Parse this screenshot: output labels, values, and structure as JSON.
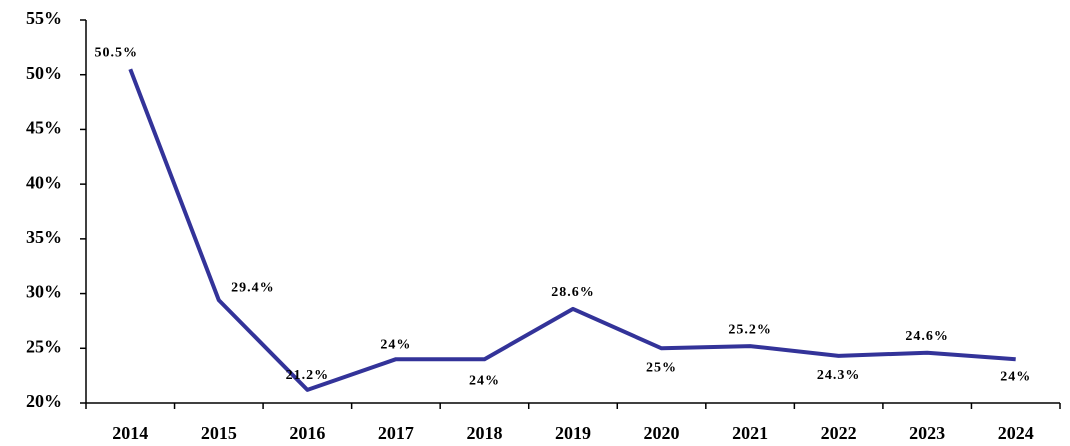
{
  "chart_data": {
    "type": "line",
    "categories": [
      "2014",
      "2015",
      "2016",
      "2017",
      "2018",
      "2019",
      "2020",
      "2021",
      "2022",
      "2023",
      "2024"
    ],
    "series": [
      {
        "color": "#333399",
        "values": [
          50.5,
          29.4,
          21.2,
          24,
          24,
          28.6,
          25,
          25.2,
          24.3,
          24.6,
          24
        ],
        "value_labels": [
          "50.5%",
          "29.4%",
          "21.2%",
          "24%",
          "24%",
          "28.6%",
          "25%",
          "25.2%",
          "24.3%",
          "24.6%",
          "24%"
        ]
      }
    ],
    "ylim": [
      20,
      55
    ],
    "yticks": [
      {
        "value": 20,
        "label": "20%"
      },
      {
        "value": 25,
        "label": "25%"
      },
      {
        "value": 30,
        "label": "30%"
      },
      {
        "value": 35,
        "label": "35%"
      },
      {
        "value": 40,
        "label": "40%"
      },
      {
        "value": 45,
        "label": "45%"
      },
      {
        "value": 50,
        "label": "50%"
      },
      {
        "value": 55,
        "label": "55%"
      }
    ],
    "grid": false
  }
}
